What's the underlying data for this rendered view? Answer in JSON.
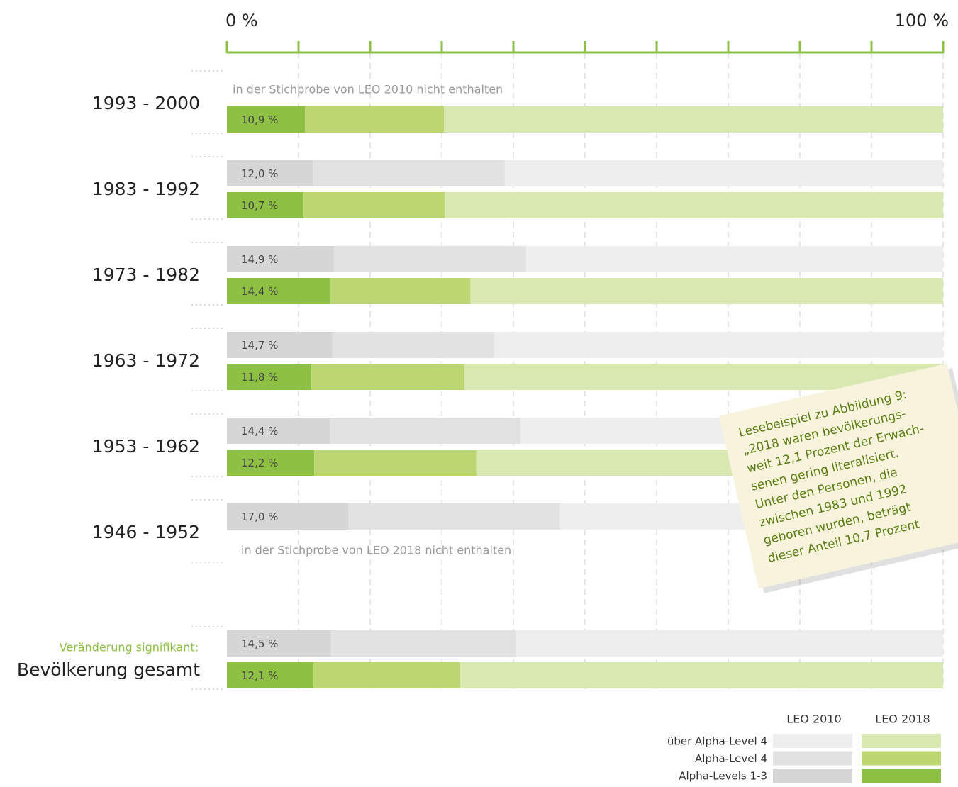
{
  "chart_data": {
    "type": "stacked_bar",
    "xlim": [
      0,
      100
    ],
    "xticks": [
      {
        "value": 0,
        "label": "0 %"
      },
      {
        "value": 100,
        "label": "100 %"
      }
    ],
    "minor_xticks": [
      10,
      20,
      30,
      40,
      50,
      60,
      70,
      80,
      90
    ],
    "grid": true,
    "categories": [
      "1993 - 2000",
      "1983 - 1992",
      "1973 - 1982",
      "1963 - 1972",
      "1953 - 1962",
      "1946 - 1952",
      "Bevölkerung gesamt"
    ],
    "category_note": "Veränderung signifikant:",
    "groups": [
      {
        "name": "LEO 2010",
        "series": [
          {
            "name": "Alpha-Levels 1-3",
            "color": "#d6d6d6",
            "values": [
              null,
              12.0,
              14.9,
              14.7,
              14.4,
              17.0,
              14.5
            ],
            "value_labels": [
              null,
              "12,0 %",
              "14,9 %",
              "14,7 %",
              "14,4 %",
              "17,0 %",
              "14,5 %"
            ]
          },
          {
            "name": "Alpha-Level 4",
            "color": "#e2e2e2",
            "values": [
              null,
              26.8,
              26.9,
              22.6,
              26.6,
              29.5,
              25.8
            ]
          },
          {
            "name": "über Alpha-Level 4",
            "color": "#eeeeee",
            "values": [
              null,
              61.2,
              58.2,
              62.7,
              59.0,
              53.5,
              59.7
            ]
          }
        ]
      },
      {
        "name": "LEO 2018",
        "series": [
          {
            "name": "Alpha-Levels 1-3",
            "color": "#8dc043",
            "values": [
              10.9,
              10.7,
              14.4,
              11.8,
              12.2,
              null,
              12.1
            ],
            "value_labels": [
              "10,9 %",
              "10,7 %",
              "14,4 %",
              "11,8 %",
              "12,2 %",
              null,
              "12,1 %"
            ]
          },
          {
            "name": "Alpha-Level 4",
            "color": "#bcd672",
            "values": [
              19.4,
              19.7,
              19.6,
              21.4,
              22.6,
              null,
              20.5
            ]
          },
          {
            "name": "über Alpha-Level 4",
            "color": "#d9e7b1",
            "values": [
              69.7,
              69.6,
              66.0,
              66.8,
              65.2,
              null,
              67.4
            ]
          }
        ]
      }
    ],
    "annotations": [
      "in der Stichprobe von LEO 2010 nicht enthalten",
      "in der Stichprobe von LEO 2018 nicht enthalten"
    ],
    "note": [
      "Lesebeispiel zu Abbildung 9:",
      "„2018 waren bevölkerungs-",
      "weit 12,1 Prozent der Erwach-",
      "senen gering literalisiert.",
      "Unter den Personen, die",
      "zwischen 1983 und 1992",
      "geboren wurden, beträgt",
      "dieser Anteil 10,7 Prozent"
    ]
  }
}
